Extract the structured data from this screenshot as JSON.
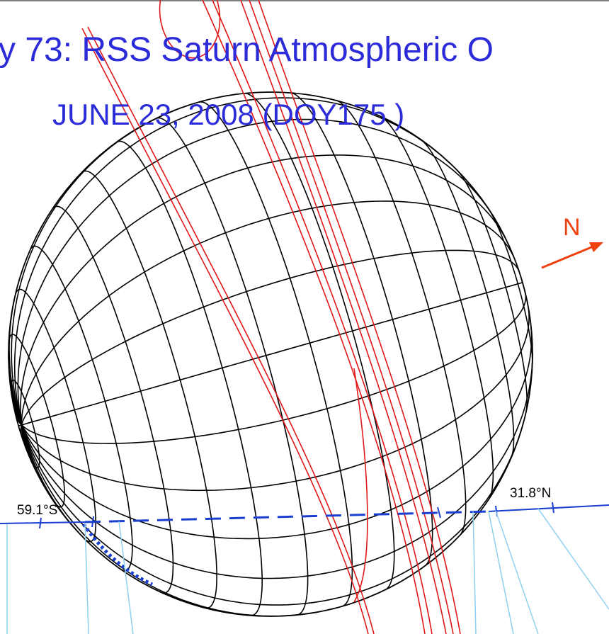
{
  "header": {
    "title": "y 73: RSS Saturn Atmospheric O",
    "subtitle": "JUNE 23, 2008 (DOY175 )"
  },
  "labels": {
    "north": "N",
    "ingress_latitude": "59.1°S",
    "egress_latitude": "31.8°N"
  }
}
